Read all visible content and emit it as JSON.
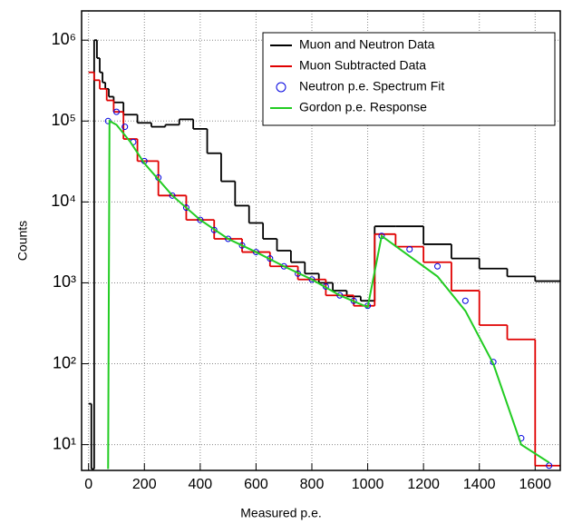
{
  "chart_data": {
    "type": "line",
    "x_label": "Measured p.e.",
    "y_label": "Counts",
    "xlim": [
      -25,
      1690
    ],
    "ylim": [
      4.8,
      2300000
    ],
    "log_y": true,
    "grid": true,
    "legend": "upper right",
    "xticks": [
      0,
      200,
      400,
      600,
      800,
      1000,
      1200,
      1400,
      1600
    ],
    "yticks": [
      {
        "value": 10,
        "label": "10¹"
      },
      {
        "value": 100,
        "label": "10²"
      },
      {
        "value": 1000,
        "label": "10³"
      },
      {
        "value": 10000,
        "label": "10⁴"
      },
      {
        "value": 100000,
        "label": "10⁵"
      },
      {
        "value": 1000000,
        "label": "10⁶"
      }
    ],
    "series": [
      {
        "name": "Muon and Neutron Data",
        "color": "#000000",
        "style": "step",
        "x": [
          5,
          15,
          25,
          35,
          45,
          55,
          65,
          80,
          100,
          150,
          200,
          250,
          300,
          350,
          400,
          450,
          500,
          550,
          600,
          650,
          700,
          750,
          800,
          850,
          900,
          950,
          1000,
          1050,
          1150,
          1250,
          1350,
          1450,
          1550,
          1650
        ],
        "values": [
          32,
          5,
          1000000,
          600000,
          400000,
          300000,
          250000,
          200000,
          170000,
          120000,
          95000,
          85000,
          90000,
          105000,
          80000,
          40000,
          18000,
          9000,
          5500,
          3500,
          2500,
          1800,
          1300,
          1000,
          800,
          680,
          600,
          5000,
          5000,
          3000,
          2000,
          1500,
          1200,
          1050
        ]
      },
      {
        "name": "Muon Subtracted Data",
        "color": "#e00000",
        "style": "step",
        "x": [
          10,
          30,
          50,
          80,
          100,
          150,
          200,
          300,
          400,
          500,
          600,
          700,
          800,
          900,
          1000,
          1050,
          1150,
          1250,
          1350,
          1450,
          1550,
          1650
        ],
        "values": [
          400000,
          320000,
          250000,
          180000,
          130000,
          60000,
          32000,
          12000,
          6000,
          3500,
          2400,
          1600,
          1100,
          700,
          520,
          4000,
          2800,
          1800,
          800,
          300,
          200,
          5.5
        ]
      },
      {
        "name": "Neutron p.e. Spectrum Fit",
        "color": "#0000e0",
        "style": "markers",
        "x": [
          70,
          100,
          130,
          160,
          200,
          250,
          300,
          350,
          400,
          450,
          500,
          550,
          600,
          650,
          700,
          750,
          800,
          850,
          900,
          950,
          1000,
          1050,
          1150,
          1250,
          1350,
          1450,
          1550,
          1650
        ],
        "values": [
          100000,
          130000,
          85000,
          55000,
          32000,
          20000,
          12000,
          8500,
          6000,
          4500,
          3500,
          2900,
          2400,
          2000,
          1600,
          1300,
          1100,
          900,
          700,
          600,
          520,
          3800,
          2600,
          1600,
          600,
          105,
          12,
          5.5
        ]
      },
      {
        "name": "Gordon p.e. Response",
        "color": "#22cc22",
        "style": "line",
        "x": [
          70,
          75,
          100,
          150,
          200,
          300,
          400,
          500,
          600,
          700,
          800,
          900,
          1000,
          1050,
          1250,
          1350,
          1450,
          1550,
          1650
        ],
        "values": [
          5,
          100000,
          90000,
          55000,
          30000,
          12000,
          6000,
          3500,
          2400,
          1600,
          1100,
          700,
          500,
          3800,
          1200,
          450,
          100,
          10,
          6
        ]
      }
    ]
  }
}
